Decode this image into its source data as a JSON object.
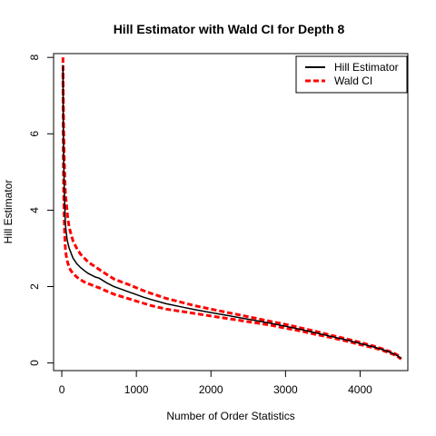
{
  "chart_data": {
    "type": "line",
    "title": "Hill Estimator with Wald CI for Depth 8",
    "xlabel": "Number of Order Statistics",
    "ylabel": "Hill Estimator",
    "xlim": [
      -110,
      4640
    ],
    "ylim": [
      -0.2,
      8.1
    ],
    "xticks": [
      0,
      1000,
      2000,
      3000,
      4000
    ],
    "yticks": [
      0,
      2,
      4,
      6,
      8
    ],
    "grid": false,
    "legend_position": "top-right",
    "series": [
      {
        "name": "Hill Estimator",
        "color": "#000000",
        "style": "solid",
        "x": [
          15,
          20,
          25,
          30,
          35,
          40,
          45,
          50,
          60,
          70,
          80,
          100,
          120,
          150,
          200,
          250,
          300,
          350,
          400,
          450,
          500,
          600,
          700,
          800,
          900,
          1000,
          1100,
          1200,
          1400,
          1600,
          1800,
          2000,
          2200,
          2400,
          2600,
          2800,
          3000,
          3200,
          3400,
          3600,
          3800,
          4000,
          4200,
          4300,
          4400,
          4450,
          4500,
          4530,
          4550
        ],
        "y": [
          7.8,
          6.2,
          5.3,
          4.8,
          4.4,
          4.1,
          3.8,
          3.6,
          3.4,
          3.25,
          3.15,
          3.0,
          2.9,
          2.75,
          2.6,
          2.5,
          2.42,
          2.35,
          2.3,
          2.25,
          2.22,
          2.1,
          2.0,
          1.93,
          1.86,
          1.79,
          1.72,
          1.66,
          1.55,
          1.47,
          1.39,
          1.32,
          1.25,
          1.18,
          1.11,
          1.04,
          0.96,
          0.88,
          0.79,
          0.7,
          0.61,
          0.51,
          0.41,
          0.35,
          0.28,
          0.24,
          0.19,
          0.15,
          0.12
        ]
      },
      {
        "name": "Wald CI",
        "color": "#ff0000",
        "style": "dashed",
        "x": [
          15,
          20,
          25,
          30,
          35,
          40,
          45,
          50,
          60,
          70,
          80,
          100,
          120,
          150,
          200,
          250,
          300,
          350,
          400,
          450,
          500,
          600,
          700,
          800,
          900,
          1000,
          1100,
          1200,
          1400,
          1600,
          1800,
          2000,
          2200,
          2400,
          2600,
          2800,
          3000,
          3200,
          3400,
          3600,
          3800,
          4000,
          4200,
          4300,
          4400,
          4450,
          4500,
          4530,
          4550
        ],
        "y": [
          8.0,
          6.9,
          6.1,
          5.6,
          5.2,
          4.9,
          4.6,
          4.4,
          4.2,
          4.0,
          3.8,
          3.55,
          3.4,
          3.2,
          3.0,
          2.85,
          2.75,
          2.65,
          2.58,
          2.52,
          2.45,
          2.32,
          2.2,
          2.12,
          2.05,
          1.97,
          1.89,
          1.82,
          1.69,
          1.59,
          1.49,
          1.41,
          1.33,
          1.25,
          1.17,
          1.09,
          1.01,
          0.92,
          0.83,
          0.73,
          0.64,
          0.54,
          0.43,
          0.37,
          0.3,
          0.26,
          0.21,
          0.17,
          0.14
        ],
        "lower_y": [
          7.6,
          5.5,
          4.5,
          4.0,
          3.6,
          3.3,
          3.1,
          2.95,
          2.8,
          2.7,
          2.62,
          2.5,
          2.42,
          2.35,
          2.25,
          2.18,
          2.12,
          2.08,
          2.04,
          2.0,
          1.97,
          1.88,
          1.8,
          1.74,
          1.68,
          1.62,
          1.56,
          1.5,
          1.41,
          1.35,
          1.29,
          1.23,
          1.17,
          1.11,
          1.05,
          0.99,
          0.91,
          0.84,
          0.75,
          0.67,
          0.58,
          0.48,
          0.39,
          0.33,
          0.26,
          0.22,
          0.17,
          0.13,
          0.1
        ]
      }
    ]
  }
}
